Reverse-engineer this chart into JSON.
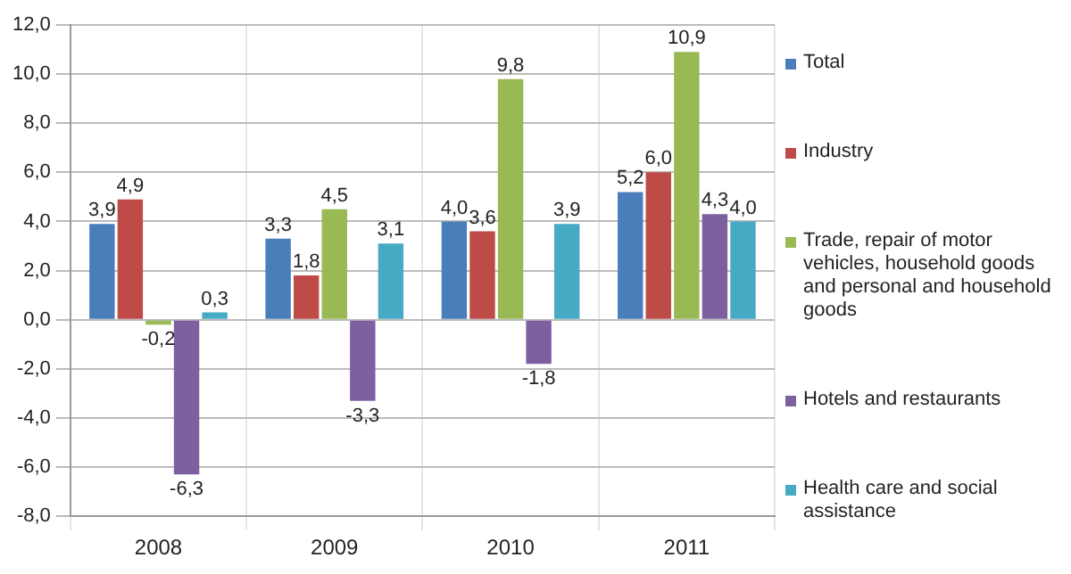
{
  "chart_data": {
    "type": "bar",
    "categories": [
      "2008",
      "2009",
      "2010",
      "2011"
    ],
    "series": [
      {
        "name": "Total",
        "color": "#4a7ebb",
        "values": [
          3.9,
          3.3,
          4.0,
          5.2
        ],
        "value_labels": [
          "3,9",
          "3,3",
          "4,0",
          "5,2"
        ]
      },
      {
        "name": "Industry",
        "color": "#be4b48",
        "values": [
          4.9,
          1.8,
          3.6,
          6.0
        ],
        "value_labels": [
          "4,9",
          "1,8",
          "3,6",
          "6,0"
        ]
      },
      {
        "name": "Trade, repair of motor vehicles, household goods and personal and household goods",
        "color": "#98b954",
        "values": [
          -0.2,
          4.5,
          9.8,
          10.9
        ],
        "value_labels": [
          "-0,2",
          "4,5",
          "9,8",
          "10,9"
        ]
      },
      {
        "name": "Hotels and restaurants",
        "color": "#7d60a0",
        "values": [
          -6.3,
          -3.3,
          -1.8,
          4.3
        ],
        "value_labels": [
          "-6,3",
          "-3,3",
          "-1,8",
          "4,3"
        ]
      },
      {
        "name": "Health care and social assistance",
        "color": "#46aac5",
        "values": [
          0.3,
          3.1,
          3.9,
          4.0
        ],
        "value_labels": [
          "0,3",
          "3,1",
          "3,9",
          "4,0"
        ]
      }
    ],
    "ylim": [
      -8,
      12
    ],
    "yticks": [
      {
        "value": -8,
        "label": "-8,0"
      },
      {
        "value": -6,
        "label": "-6,0"
      },
      {
        "value": -4,
        "label": "-4,0"
      },
      {
        "value": -2,
        "label": "-2,0"
      },
      {
        "value": 0,
        "label": "0,0"
      },
      {
        "value": 2,
        "label": "2,0"
      },
      {
        "value": 4,
        "label": "4,0"
      },
      {
        "value": 6,
        "label": "6,0"
      },
      {
        "value": 8,
        "label": "8,0"
      },
      {
        "value": 10,
        "label": "10,0"
      },
      {
        "value": 12,
        "label": "12,0"
      }
    ],
    "grid": true,
    "legend": "right"
  }
}
